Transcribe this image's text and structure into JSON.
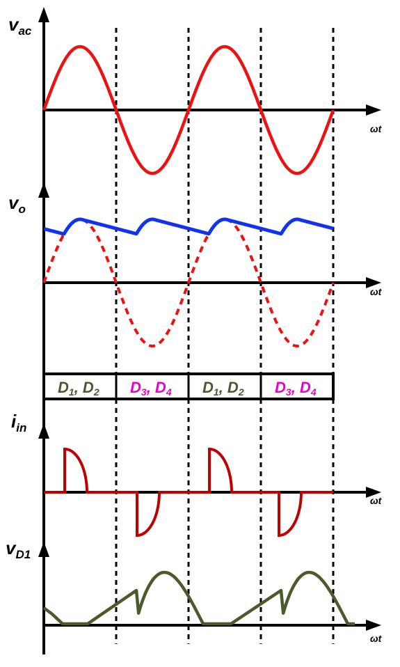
{
  "labels": {
    "vac_main": "v",
    "vac_sub": "ac",
    "vo_main": "v",
    "vo_sub": "o",
    "iin_main": "i",
    "iin_sub": "in",
    "vd1_main": "v",
    "vd1_sub": "D1",
    "wt": "ωt"
  },
  "conduction": [
    {
      "d1": "D",
      "s1": "1",
      "d2": "D",
      "s2": "2",
      "sep": ", ",
      "group": "D1,D2"
    },
    {
      "d1": "D",
      "s1": "3",
      "d2": "D",
      "s2": "4",
      "sep": ", ",
      "group": "D3,D4"
    },
    {
      "d1": "D",
      "s1": "1",
      "d2": "D",
      "s2": "2",
      "sep": ", ",
      "group": "D1,D2"
    },
    {
      "d1": "D",
      "s1": "3",
      "d2": "D",
      "s2": "4",
      "sep": ", ",
      "group": "D3,D4"
    }
  ],
  "colors": {
    "axis": "#000000",
    "vac": "#ee1111",
    "vo": "#1133ee",
    "vo_dashed": "#ee1111",
    "iin": "#c00000",
    "vd1": "#4a5a2a",
    "d12_text": "#4a5a2a",
    "d34_text": "#ee00cc"
  }
}
